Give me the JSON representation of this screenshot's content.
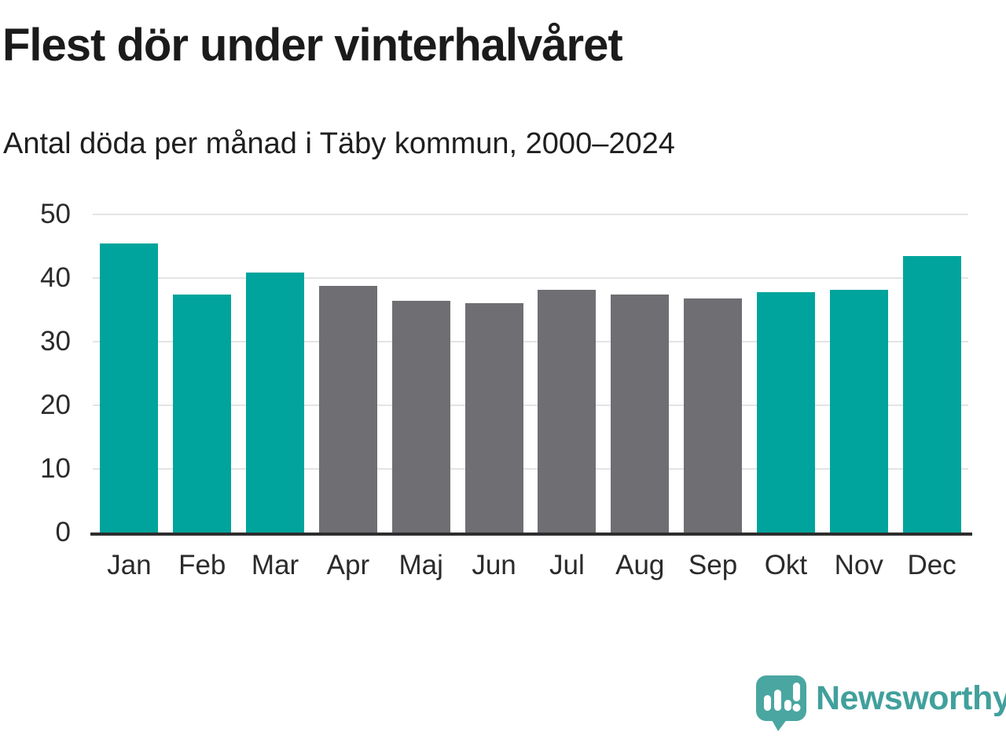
{
  "title": "Flest dör under vinterhalvåret",
  "subtitle": "Antal döda per månad i Täby kommun, 2000–2024",
  "colors": {
    "winter_bar": "#00a49c",
    "summer_bar": "#6f6e73",
    "axis_line": "#2e2e2e",
    "gridline": "#e4e4e4",
    "logo": "#41a09c",
    "logo_bubble": "#4aa6a1",
    "text": "#222222"
  },
  "chart_data": {
    "type": "bar",
    "title": "Flest dör under vinterhalvåret",
    "subtitle": "Antal döda per månad i Täby kommun, 2000–2024",
    "categories": [
      "Jan",
      "Feb",
      "Mar",
      "Apr",
      "Maj",
      "Jun",
      "Jul",
      "Aug",
      "Sep",
      "Okt",
      "Nov",
      "Dec"
    ],
    "values": [
      45.4,
      37.4,
      40.9,
      38.8,
      36.4,
      36.0,
      38.1,
      37.4,
      36.8,
      37.8,
      38.2,
      43.5
    ],
    "bar_groups": [
      "winter",
      "winter",
      "winter",
      "summer",
      "summer",
      "summer",
      "summer",
      "summer",
      "summer",
      "winter",
      "winter",
      "winter"
    ],
    "xlabel": "",
    "ylabel": "",
    "ylim": [
      0,
      50
    ],
    "yticks": [
      0,
      10,
      20,
      30,
      40,
      50
    ],
    "grid": true,
    "legend": false
  },
  "footer": {
    "brand": "Newsworthy"
  }
}
